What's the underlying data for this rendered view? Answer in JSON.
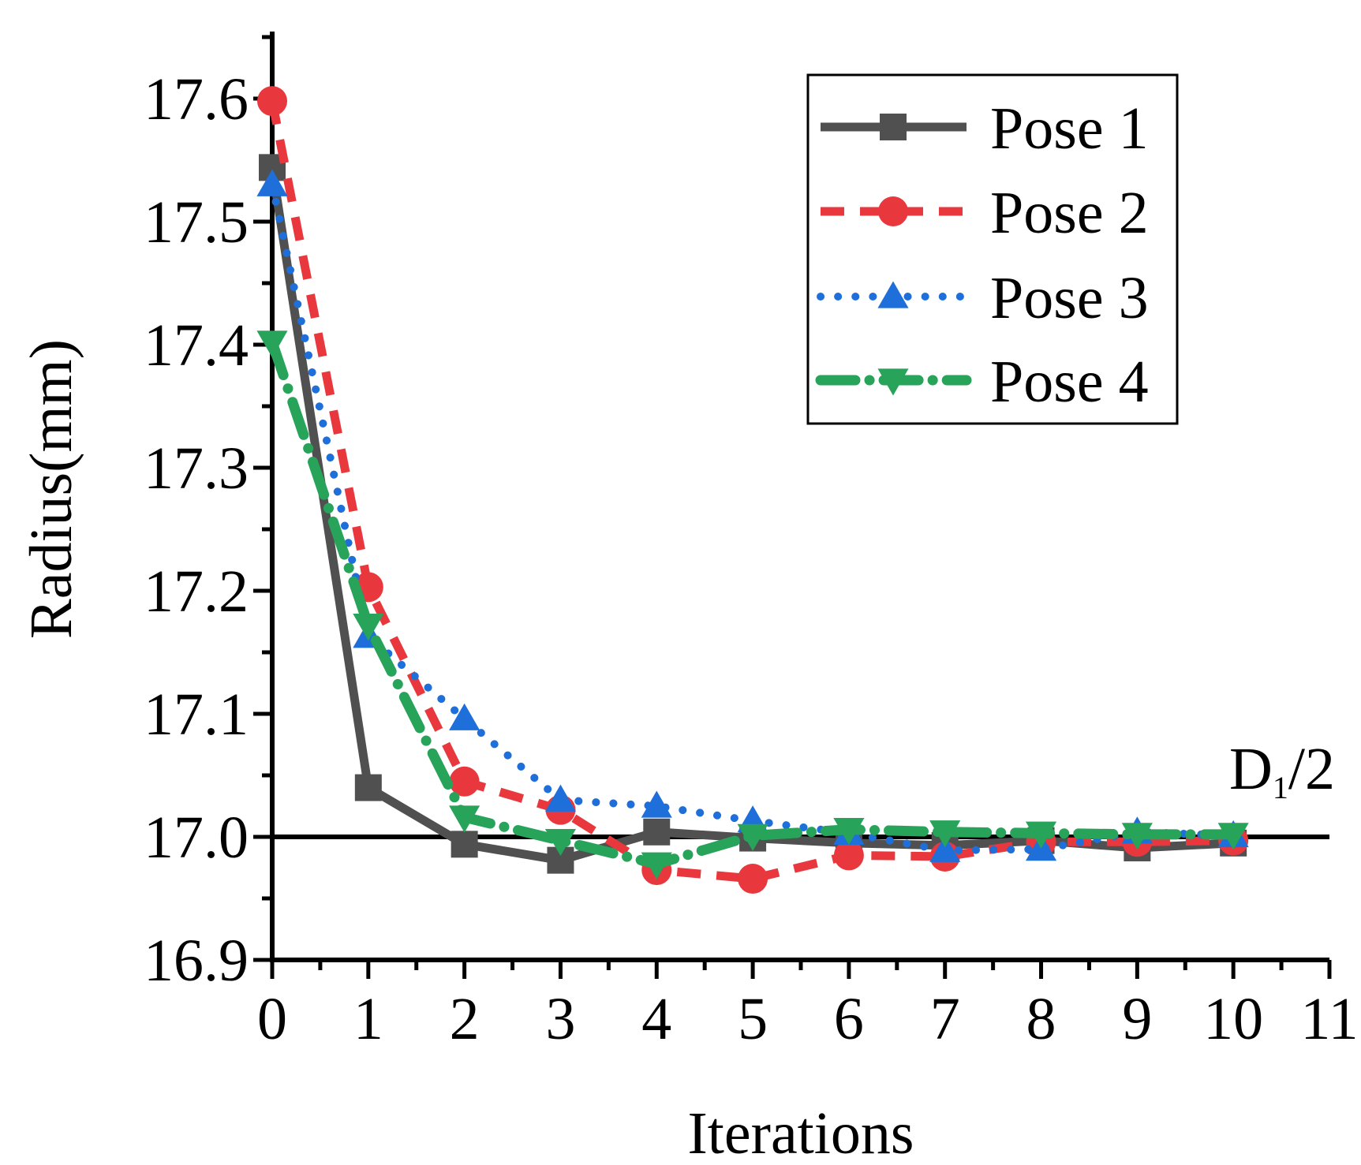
{
  "chart_data": {
    "type": "line",
    "title": "",
    "xlabel": "Iterations",
    "ylabel": "Radius(mm)",
    "xlim": [
      0,
      11
    ],
    "ylim": [
      16.9,
      17.65
    ],
    "x_ticks": [
      0,
      1,
      2,
      3,
      4,
      5,
      6,
      7,
      8,
      9,
      10,
      11
    ],
    "y_ticks": [
      16.9,
      17.0,
      17.1,
      17.2,
      17.3,
      17.4,
      17.5,
      17.6
    ],
    "x_tick_labels": [
      "0",
      "1",
      "2",
      "3",
      "4",
      "5",
      "6",
      "7",
      "8",
      "9",
      "10",
      "11"
    ],
    "y_tick_labels": [
      "16.9",
      "17.0",
      "17.1",
      "17.2",
      "17.3",
      "17.4",
      "17.5",
      "17.6"
    ],
    "grid": false,
    "legend_position": "top-right",
    "reference_line": {
      "y": 17.0,
      "label_main": "D",
      "label_sub": "1",
      "label_tail": "/2",
      "color": "#000000"
    },
    "x": [
      0,
      1,
      2,
      3,
      4,
      5,
      6,
      7,
      8,
      9,
      10
    ],
    "series": [
      {
        "name": "Pose 1",
        "color": "#505050",
        "dash": "solid",
        "marker": "square",
        "values": [
          17.544,
          17.04,
          16.994,
          16.981,
          17.004,
          16.999,
          16.995,
          16.993,
          16.997,
          16.991,
          16.995
        ]
      },
      {
        "name": "Pose 2",
        "color": "#e8383d",
        "dash": "dash",
        "marker": "circle",
        "values": [
          17.598,
          17.203,
          17.045,
          17.022,
          16.973,
          16.966,
          16.985,
          16.984,
          16.996,
          16.996,
          16.997
        ]
      },
      {
        "name": "Pose 3",
        "color": "#1e6fd9",
        "dash": "dot",
        "marker": "triangle-up",
        "values": [
          17.53,
          17.163,
          17.096,
          17.03,
          17.025,
          17.013,
          17.003,
          16.989,
          16.99,
          17.004,
          17.001
        ]
      },
      {
        "name": "Pose 4",
        "color": "#27a35a",
        "dash": "dashdot",
        "marker": "triangle-down",
        "values": [
          17.402,
          17.172,
          17.016,
          16.997,
          16.978,
          17.001,
          17.006,
          17.004,
          17.003,
          17.002,
          17.002
        ]
      }
    ]
  }
}
